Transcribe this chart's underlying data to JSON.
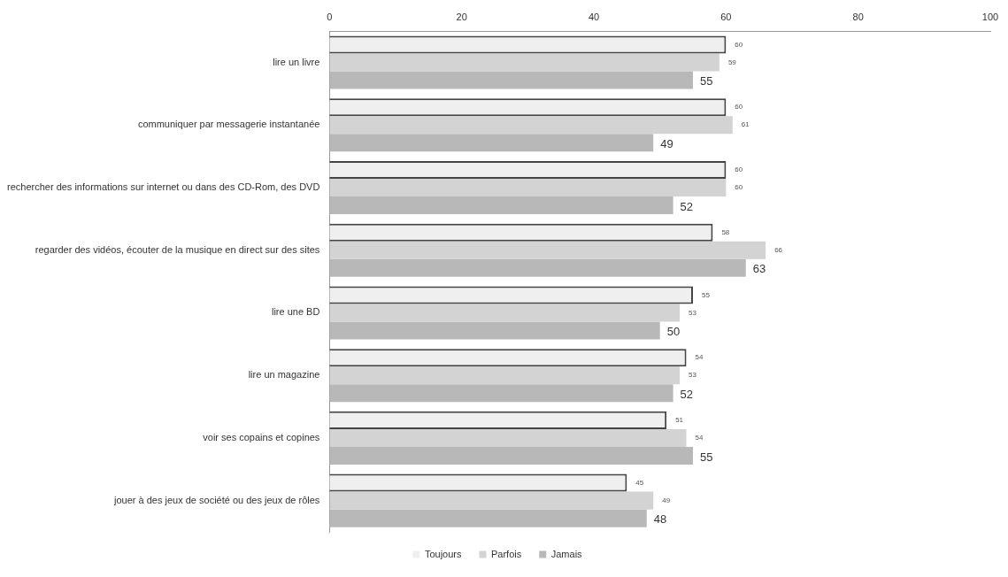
{
  "chart_data": {
    "type": "bar",
    "orientation": "horizontal",
    "categories": [
      "lire un livre",
      "communiquer par messagerie instantanée",
      "rechercher des informations sur internet ou dans des CD-Rom, des DVD",
      "regarder des vidéos, écouter de la musique en direct sur des sites",
      "lire une BD",
      "lire un magazine",
      "voir ses copains et copines",
      "jouer à des jeux de société ou des jeux de rôles"
    ],
    "series": [
      {
        "name": "Toujours",
        "color": "#efefef",
        "values": [
          60,
          60,
          60,
          58,
          55,
          54,
          51,
          45
        ]
      },
      {
        "name": "Parfois",
        "color": "#d3d3d3",
        "values": [
          59,
          61,
          60,
          66,
          53,
          53,
          54,
          49
        ]
      },
      {
        "name": "Jamais",
        "color": "#b8b8b8",
        "values": [
          55,
          49,
          52,
          63,
          50,
          52,
          55,
          48
        ]
      }
    ],
    "xlim": [
      0,
      100
    ],
    "xticks": [
      0,
      20,
      40,
      60,
      80,
      100
    ],
    "grid": false,
    "legend": "bottom",
    "data_labels": true
  }
}
